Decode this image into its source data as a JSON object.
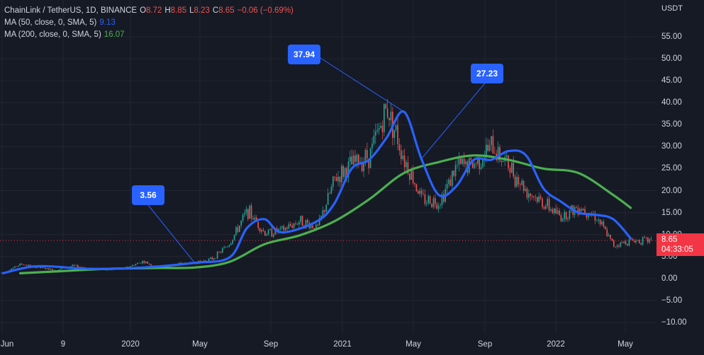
{
  "header": {
    "symbol": "ChainLink / TetherUS, 1D, BINANCE",
    "ohlc": [
      {
        "key": "O",
        "value": "8.72"
      },
      {
        "key": "H",
        "value": "8.85"
      },
      {
        "key": "L",
        "value": "8.23"
      },
      {
        "key": "C",
        "value": "8.65"
      }
    ],
    "change": "−0.06 (−0.69%)",
    "ma50_label": "MA (50, close, 0, SMA, 5)",
    "ma50_value": "9.13",
    "ma200_label": "MA (200, close, 0, SMA, 5)",
    "ma200_value": "16.07"
  },
  "axis": {
    "currency": "USDT",
    "y_ticks": [
      "55.00",
      "50.00",
      "45.00",
      "40.00",
      "35.00",
      "30.00",
      "25.00",
      "20.00",
      "15.00",
      "10.00",
      "5.00",
      "0.00",
      "−5.00",
      "−10.00"
    ],
    "x_ticks": [
      "Jun",
      "9",
      "2020",
      "May",
      "Sep",
      "2021",
      "May",
      "Sep",
      "2022",
      "May"
    ]
  },
  "price_tag": {
    "price": "8.65",
    "countdown": "04:33:05"
  },
  "callouts": [
    "3.56",
    "37.94",
    "27.23"
  ],
  "colors": {
    "background": "#161a25",
    "grid": "#232632",
    "up": "#26a69a",
    "down": "#ef5350",
    "ma50": "#2962ff",
    "ma200": "#4caf50",
    "callout": "#2962ff",
    "price_tag": "#f23645"
  },
  "chart_data": {
    "type": "line",
    "chart_style": "candlestick",
    "ylim": [
      -10,
      55
    ],
    "x_labels": [
      "Jun 2019",
      "Sep 2019",
      "Jan 2020",
      "May 2020",
      "Sep 2020",
      "Jan 2021",
      "May 2021",
      "Sep 2021",
      "Jan 2022",
      "May 2022"
    ],
    "series": [
      {
        "name": "ChainLink / TetherUS close",
        "x": [
          "2019-06",
          "2019-07",
          "2019-08",
          "2019-09",
          "2019-10",
          "2019-11",
          "2019-12",
          "2020-01",
          "2020-02",
          "2020-03",
          "2020-04",
          "2020-05",
          "2020-06",
          "2020-07",
          "2020-08",
          "2020-09",
          "2020-10",
          "2020-11",
          "2020-12",
          "2021-01",
          "2021-02",
          "2021-03",
          "2021-04",
          "2021-05",
          "2021-06",
          "2021-07",
          "2021-08",
          "2021-09",
          "2021-10",
          "2021-11",
          "2021-12",
          "2022-01",
          "2022-02",
          "2022-03",
          "2022-04",
          "2022-05",
          "2022-06"
        ],
        "values": [
          1.3,
          3.3,
          2.5,
          1.9,
          2.9,
          2.3,
          1.9,
          2.4,
          3.9,
          2.3,
          3.3,
          3.6,
          4.5,
          8.1,
          15.5,
          10.3,
          11.0,
          13.2,
          11.4,
          22.5,
          26.0,
          28.1,
          39.0,
          27.2,
          18.0,
          17.5,
          25.5,
          26.0,
          30.0,
          25.5,
          20.0,
          17.0,
          14.0,
          16.5,
          14.0,
          7.5,
          8.65
        ]
      },
      {
        "name": "MA (50, close, 0, SMA, 5)",
        "x": [
          "2019-06",
          "2019-08",
          "2019-11",
          "2020-02",
          "2020-05",
          "2020-07",
          "2020-08",
          "2020-09",
          "2020-10",
          "2020-12",
          "2021-01",
          "2021-02",
          "2021-03",
          "2021-04",
          "2021-05",
          "2021-06",
          "2021-07",
          "2021-08",
          "2021-09",
          "2021-10",
          "2021-11",
          "2021-12",
          "2022-01",
          "2022-02",
          "2022-03",
          "2022-04",
          "2022-05",
          "2022-06"
        ],
        "values": [
          1.2,
          2.8,
          2.2,
          2.5,
          3.56,
          4.8,
          11.5,
          13.5,
          10.5,
          13.0,
          17.0,
          25.0,
          27.0,
          32.0,
          37.94,
          27.23,
          19.0,
          21.0,
          27.0,
          27.0,
          29.0,
          28.0,
          20.5,
          17.5,
          15.0,
          14.5,
          13.5,
          9.13
        ]
      },
      {
        "name": "MA (200, close, 0, SMA, 5)",
        "x": [
          "2019-07",
          "2019-09",
          "2019-12",
          "2020-03",
          "2020-05",
          "2020-07",
          "2020-09",
          "2020-11",
          "2021-01",
          "2021-03",
          "2021-05",
          "2021-07",
          "2021-09",
          "2021-11",
          "2022-01",
          "2022-03",
          "2022-05",
          "2022-06"
        ],
        "values": [
          1.2,
          1.6,
          2.2,
          2.4,
          2.5,
          3.8,
          7.8,
          9.8,
          13.0,
          18.0,
          24.0,
          26.5,
          28.0,
          27.0,
          25.0,
          24.0,
          19.0,
          16.07
        ]
      }
    ],
    "annotations": [
      {
        "text": "3.56",
        "x": "2020-05",
        "value": 3.56
      },
      {
        "text": "37.94",
        "x": "2021-05",
        "value": 37.94
      },
      {
        "text": "27.23",
        "x": "2021-06",
        "value": 27.23
      }
    ],
    "last_price": 8.65,
    "grid": true,
    "legend": "top-left"
  }
}
